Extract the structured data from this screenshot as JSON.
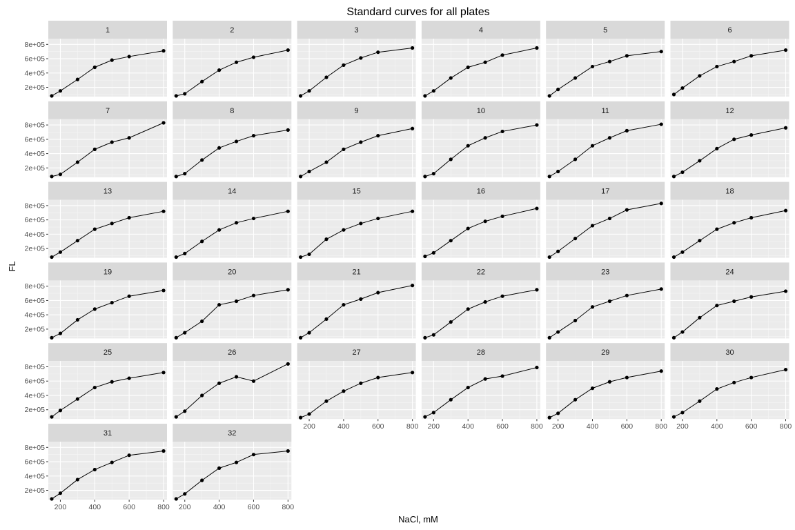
{
  "chart_data": {
    "type": "line",
    "title": "Standard curves for all plates",
    "xlabel": "NaCl, mM",
    "ylabel": "FL",
    "x": [
      150,
      200,
      300,
      400,
      500,
      600,
      800
    ],
    "xlim": [
      130,
      820
    ],
    "ylim": [
      70000,
      880000
    ],
    "x_ticks": [
      200,
      400,
      600,
      800
    ],
    "x_tick_labels": [
      "200",
      "400",
      "600",
      "800"
    ],
    "y_ticks": [
      200000,
      400000,
      600000,
      800000
    ],
    "y_tick_labels": [
      "2e+05",
      "4e+05",
      "6e+05",
      "8e+05"
    ],
    "grid": true,
    "facet_columns": 6,
    "panels": [
      {
        "label": "1",
        "y": [
          80000,
          150000,
          310000,
          480000,
          580000,
          630000,
          710000
        ]
      },
      {
        "label": "2",
        "y": [
          80000,
          110000,
          280000,
          440000,
          550000,
          620000,
          720000
        ]
      },
      {
        "label": "3",
        "y": [
          80000,
          150000,
          340000,
          510000,
          610000,
          690000,
          750000
        ]
      },
      {
        "label": "4",
        "y": [
          80000,
          150000,
          330000,
          480000,
          550000,
          650000,
          750000
        ]
      },
      {
        "label": "5",
        "y": [
          80000,
          170000,
          330000,
          490000,
          560000,
          640000,
          700000
        ]
      },
      {
        "label": "6",
        "y": [
          100000,
          190000,
          360000,
          490000,
          560000,
          640000,
          720000
        ]
      },
      {
        "label": "7",
        "y": [
          80000,
          110000,
          280000,
          460000,
          560000,
          620000,
          830000
        ]
      },
      {
        "label": "8",
        "y": [
          80000,
          120000,
          310000,
          480000,
          570000,
          650000,
          730000
        ]
      },
      {
        "label": "9",
        "y": [
          80000,
          150000,
          280000,
          460000,
          560000,
          650000,
          750000
        ]
      },
      {
        "label": "10",
        "y": [
          80000,
          120000,
          320000,
          510000,
          620000,
          710000,
          800000
        ]
      },
      {
        "label": "11",
        "y": [
          80000,
          150000,
          320000,
          510000,
          620000,
          720000,
          810000
        ]
      },
      {
        "label": "12",
        "y": [
          80000,
          140000,
          300000,
          470000,
          600000,
          660000,
          760000
        ]
      },
      {
        "label": "13",
        "y": [
          80000,
          150000,
          310000,
          470000,
          550000,
          630000,
          720000
        ]
      },
      {
        "label": "14",
        "y": [
          80000,
          130000,
          300000,
          460000,
          560000,
          620000,
          720000
        ]
      },
      {
        "label": "15",
        "y": [
          80000,
          120000,
          330000,
          460000,
          550000,
          620000,
          720000
        ]
      },
      {
        "label": "16",
        "y": [
          90000,
          140000,
          310000,
          480000,
          580000,
          650000,
          760000
        ]
      },
      {
        "label": "17",
        "y": [
          80000,
          160000,
          340000,
          520000,
          620000,
          740000,
          830000
        ]
      },
      {
        "label": "18",
        "y": [
          80000,
          150000,
          310000,
          470000,
          560000,
          630000,
          730000
        ]
      },
      {
        "label": "19",
        "y": [
          80000,
          140000,
          330000,
          480000,
          570000,
          660000,
          740000
        ]
      },
      {
        "label": "20",
        "y": [
          80000,
          150000,
          310000,
          540000,
          590000,
          670000,
          750000
        ]
      },
      {
        "label": "21",
        "y": [
          80000,
          150000,
          340000,
          540000,
          620000,
          710000,
          810000
        ]
      },
      {
        "label": "22",
        "y": [
          80000,
          120000,
          300000,
          480000,
          580000,
          660000,
          750000
        ]
      },
      {
        "label": "23",
        "y": [
          80000,
          160000,
          320000,
          510000,
          590000,
          670000,
          760000
        ]
      },
      {
        "label": "24",
        "y": [
          80000,
          160000,
          360000,
          530000,
          590000,
          650000,
          730000
        ]
      },
      {
        "label": "25",
        "y": [
          100000,
          190000,
          350000,
          510000,
          590000,
          640000,
          720000
        ]
      },
      {
        "label": "26",
        "y": [
          100000,
          180000,
          400000,
          570000,
          660000,
          600000,
          840000
        ]
      },
      {
        "label": "27",
        "y": [
          90000,
          140000,
          320000,
          460000,
          570000,
          650000,
          720000
        ]
      },
      {
        "label": "28",
        "y": [
          100000,
          160000,
          340000,
          510000,
          630000,
          670000,
          790000
        ]
      },
      {
        "label": "29",
        "y": [
          90000,
          150000,
          340000,
          500000,
          590000,
          650000,
          740000
        ]
      },
      {
        "label": "30",
        "y": [
          100000,
          160000,
          320000,
          490000,
          580000,
          650000,
          760000
        ]
      },
      {
        "label": "31",
        "y": [
          80000,
          160000,
          350000,
          490000,
          590000,
          690000,
          750000
        ]
      },
      {
        "label": "32",
        "y": [
          80000,
          150000,
          340000,
          510000,
          590000,
          700000,
          750000
        ]
      }
    ]
  }
}
